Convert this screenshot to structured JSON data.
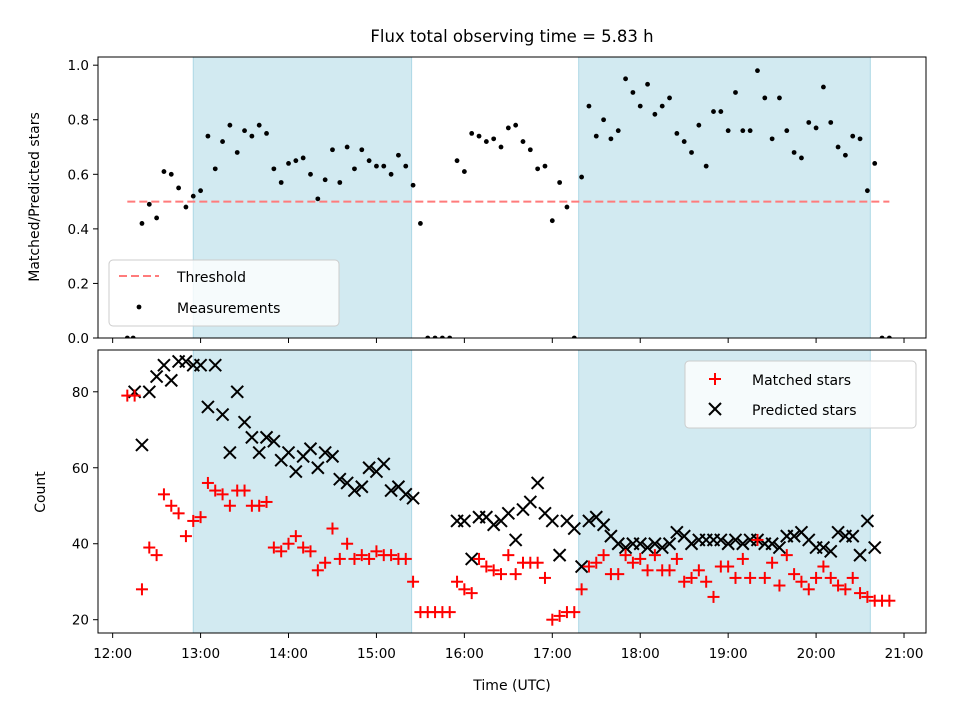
{
  "title": "Flux total observing time = 5.83 h",
  "colors": {
    "shade": "#add8e6",
    "threshold": "#ff7b7b",
    "matched": "#ff0000",
    "predicted": "#000000",
    "measurement": "#000000"
  },
  "chart_data": [
    {
      "type": "scatter",
      "panel": "top",
      "ylabel": "Matched/Predicted stars",
      "ylim": [
        0,
        1.03
      ],
      "yticks": [
        "0.0",
        "0.2",
        "0.4",
        "0.6",
        "0.8",
        "1.0"
      ],
      "xlim": [
        "11:50",
        "21:15"
      ],
      "grid": false,
      "legend_position": "lower-left",
      "shaded_intervals": [
        [
          "12:55",
          "15:24"
        ],
        [
          "17:18",
          "20:37"
        ]
      ],
      "series": [
        {
          "name": "Threshold",
          "style": "dashed-line",
          "x": [
            "12:10",
            "20:50"
          ],
          "y": [
            0.5,
            0.5
          ]
        },
        {
          "name": "Measurements",
          "style": "dot",
          "x": [
            "12:10",
            "12:14",
            "12:20",
            "12:25",
            "12:30",
            "12:35",
            "12:40",
            "12:45",
            "12:50",
            "12:55",
            "13:00",
            "13:05",
            "13:10",
            "13:15",
            "13:20",
            "13:25",
            "13:30",
            "13:35",
            "13:40",
            "13:45",
            "13:50",
            "13:55",
            "14:00",
            "14:05",
            "14:10",
            "14:15",
            "14:20",
            "14:25",
            "14:30",
            "14:35",
            "14:40",
            "14:45",
            "14:50",
            "14:55",
            "15:00",
            "15:05",
            "15:10",
            "15:15",
            "15:20",
            "15:25",
            "15:30",
            "15:35",
            "15:40",
            "15:45",
            "15:50",
            "15:55",
            "16:00",
            "16:05",
            "16:10",
            "16:15",
            "16:20",
            "16:25",
            "16:30",
            "16:35",
            "16:40",
            "16:45",
            "16:50",
            "16:55",
            "17:00",
            "17:05",
            "17:10",
            "17:15",
            "17:20",
            "17:25",
            "17:30",
            "17:35",
            "17:40",
            "17:45",
            "17:50",
            "17:55",
            "18:00",
            "18:05",
            "18:10",
            "18:15",
            "18:20",
            "18:25",
            "18:30",
            "18:35",
            "18:40",
            "18:45",
            "18:50",
            "18:55",
            "19:00",
            "19:05",
            "19:10",
            "19:15",
            "19:20",
            "19:25",
            "19:30",
            "19:35",
            "19:40",
            "19:45",
            "19:50",
            "19:55",
            "20:00",
            "20:05",
            "20:10",
            "20:15",
            "20:20",
            "20:25",
            "20:30",
            "20:35",
            "20:40",
            "20:45",
            "20:50"
          ],
          "y": [
            0.0,
            0.0,
            0.42,
            0.49,
            0.44,
            0.61,
            0.6,
            0.55,
            0.48,
            0.52,
            0.54,
            0.74,
            0.62,
            0.72,
            0.78,
            0.68,
            0.76,
            0.74,
            0.78,
            0.75,
            0.62,
            0.57,
            0.64,
            0.65,
            0.66,
            0.6,
            0.51,
            0.58,
            0.69,
            0.57,
            0.7,
            0.62,
            0.69,
            0.65,
            0.63,
            0.63,
            0.6,
            0.67,
            0.63,
            0.56,
            0.42,
            0.0,
            0.0,
            0.0,
            0.0,
            0.65,
            0.61,
            0.75,
            0.74,
            0.72,
            0.73,
            0.7,
            0.77,
            0.78,
            0.72,
            0.69,
            0.62,
            0.63,
            0.43,
            0.57,
            0.48,
            0.0,
            0.59,
            0.85,
            0.74,
            0.8,
            0.73,
            0.76,
            0.95,
            0.9,
            0.85,
            0.93,
            0.82,
            0.85,
            0.88,
            0.75,
            0.72,
            0.68,
            0.78,
            0.63,
            0.83,
            0.83,
            0.76,
            0.9,
            0.76,
            0.76,
            0.98,
            0.88,
            0.73,
            0.88,
            0.76,
            0.68,
            0.66,
            0.79,
            0.77,
            0.92,
            0.79,
            0.7,
            0.67,
            0.74,
            0.73,
            0.54,
            0.64,
            0.0,
            0.0
          ]
        }
      ]
    },
    {
      "type": "scatter",
      "panel": "bottom",
      "xlabel": "Time (UTC)",
      "ylabel": "Count",
      "ylim": [
        16.5,
        91
      ],
      "yticks": [
        "20",
        "40",
        "60",
        "80"
      ],
      "xticks": [
        "12:00",
        "13:00",
        "14:00",
        "15:00",
        "16:00",
        "17:00",
        "18:00",
        "19:00",
        "20:00",
        "21:00"
      ],
      "xlim": [
        "11:50",
        "21:15"
      ],
      "grid": false,
      "legend_position": "top-right",
      "shaded_intervals": [
        [
          "12:55",
          "15:24"
        ],
        [
          "17:18",
          "20:37"
        ]
      ],
      "series": [
        {
          "name": "Matched stars",
          "marker": "+",
          "x": [
            "12:10",
            "12:15",
            "12:20",
            "12:25",
            "12:30",
            "12:35",
            "12:40",
            "12:45",
            "12:50",
            "12:55",
            "13:00",
            "13:05",
            "13:10",
            "13:15",
            "13:20",
            "13:25",
            "13:30",
            "13:35",
            "13:40",
            "13:45",
            "13:50",
            "13:55",
            "14:00",
            "14:05",
            "14:10",
            "14:15",
            "14:20",
            "14:25",
            "14:30",
            "14:35",
            "14:40",
            "14:45",
            "14:50",
            "14:55",
            "15:00",
            "15:05",
            "15:10",
            "15:15",
            "15:20",
            "15:25",
            "15:30",
            "15:35",
            "15:40",
            "15:45",
            "15:50",
            "15:55",
            "16:00",
            "16:05",
            "16:10",
            "16:15",
            "16:20",
            "16:25",
            "16:30",
            "16:35",
            "16:40",
            "16:45",
            "16:50",
            "16:55",
            "17:00",
            "17:05",
            "17:10",
            "17:15",
            "17:20",
            "17:25",
            "17:30",
            "17:35",
            "17:40",
            "17:45",
            "17:50",
            "17:55",
            "18:00",
            "18:05",
            "18:10",
            "18:15",
            "18:20",
            "18:25",
            "18:30",
            "18:35",
            "18:40",
            "18:45",
            "18:50",
            "18:55",
            "19:00",
            "19:05",
            "19:10",
            "19:15",
            "19:20",
            "19:25",
            "19:30",
            "19:35",
            "19:40",
            "19:45",
            "19:50",
            "19:55",
            "20:00",
            "20:05",
            "20:10",
            "20:15",
            "20:20",
            "20:25",
            "20:30",
            "20:35",
            "20:40",
            "20:45",
            "20:50"
          ],
          "y": [
            79,
            79,
            28,
            39,
            37,
            53,
            50,
            48,
            42,
            46,
            47,
            56,
            54,
            53,
            50,
            54,
            54,
            50,
            50,
            51,
            39,
            38,
            40,
            42,
            39,
            38,
            33,
            35,
            44,
            36,
            40,
            36,
            37,
            36,
            38,
            37,
            37,
            36,
            36,
            30,
            22,
            22,
            22,
            22,
            22,
            30,
            28,
            27,
            36,
            34,
            33,
            32,
            37,
            32,
            35,
            35,
            35,
            31,
            20,
            21,
            22,
            22,
            28,
            34,
            35,
            37,
            32,
            32,
            37,
            35,
            36,
            33,
            37,
            33,
            33,
            36,
            30,
            31,
            33,
            30,
            26,
            34,
            34,
            31,
            36,
            31,
            41,
            31,
            35,
            29,
            37,
            32,
            30,
            28,
            31,
            34,
            31,
            29,
            28,
            31,
            27,
            26,
            25,
            25,
            25
          ]
        },
        {
          "name": "Predicted stars",
          "marker": "x",
          "x": [
            "12:15",
            "12:20",
            "12:25",
            "12:30",
            "12:35",
            "12:40",
            "12:45",
            "12:50",
            "12:55",
            "13:00",
            "13:05",
            "13:10",
            "13:15",
            "13:20",
            "13:25",
            "13:30",
            "13:35",
            "13:40",
            "13:45",
            "13:50",
            "13:55",
            "14:00",
            "14:05",
            "14:10",
            "14:15",
            "14:20",
            "14:25",
            "14:30",
            "14:35",
            "14:40",
            "14:45",
            "14:50",
            "14:55",
            "15:00",
            "15:05",
            "15:10",
            "15:15",
            "15:20",
            "15:25",
            "15:55",
            "16:00",
            "16:05",
            "16:10",
            "16:15",
            "16:20",
            "16:25",
            "16:30",
            "16:35",
            "16:40",
            "16:45",
            "16:50",
            "16:55",
            "17:00",
            "17:05",
            "17:10",
            "17:15",
            "17:20",
            "17:25",
            "17:30",
            "17:35",
            "17:40",
            "17:45",
            "17:50",
            "17:55",
            "18:00",
            "18:05",
            "18:10",
            "18:15",
            "18:20",
            "18:25",
            "18:30",
            "18:35",
            "18:40",
            "18:45",
            "18:50",
            "18:55",
            "19:00",
            "19:05",
            "19:10",
            "19:15",
            "19:20",
            "19:25",
            "19:30",
            "19:35",
            "19:40",
            "19:45",
            "19:50",
            "19:55",
            "20:00",
            "20:05",
            "20:10",
            "20:15",
            "20:20",
            "20:25",
            "20:30",
            "20:35",
            "20:40"
          ],
          "y": [
            80,
            66,
            80,
            84,
            87,
            83,
            88,
            88,
            87,
            87,
            76,
            87,
            74,
            64,
            80,
            72,
            68,
            64,
            68,
            67,
            62,
            64,
            59,
            63,
            65,
            60,
            64,
            63,
            57,
            56,
            54,
            55,
            60,
            59,
            61,
            54,
            55,
            53,
            52,
            46,
            46,
            36,
            47,
            47,
            45,
            46,
            48,
            41,
            49,
            51,
            56,
            48,
            46,
            37,
            46,
            44,
            34,
            46,
            47,
            45,
            42,
            40,
            39,
            40,
            40,
            39,
            40,
            39,
            40,
            43,
            42,
            40,
            41,
            41,
            41,
            41,
            40,
            41,
            40,
            41,
            41,
            40,
            40,
            39,
            42,
            42,
            43,
            41,
            39,
            39,
            38,
            43,
            42,
            42,
            37,
            46,
            39
          ]
        }
      ]
    }
  ]
}
